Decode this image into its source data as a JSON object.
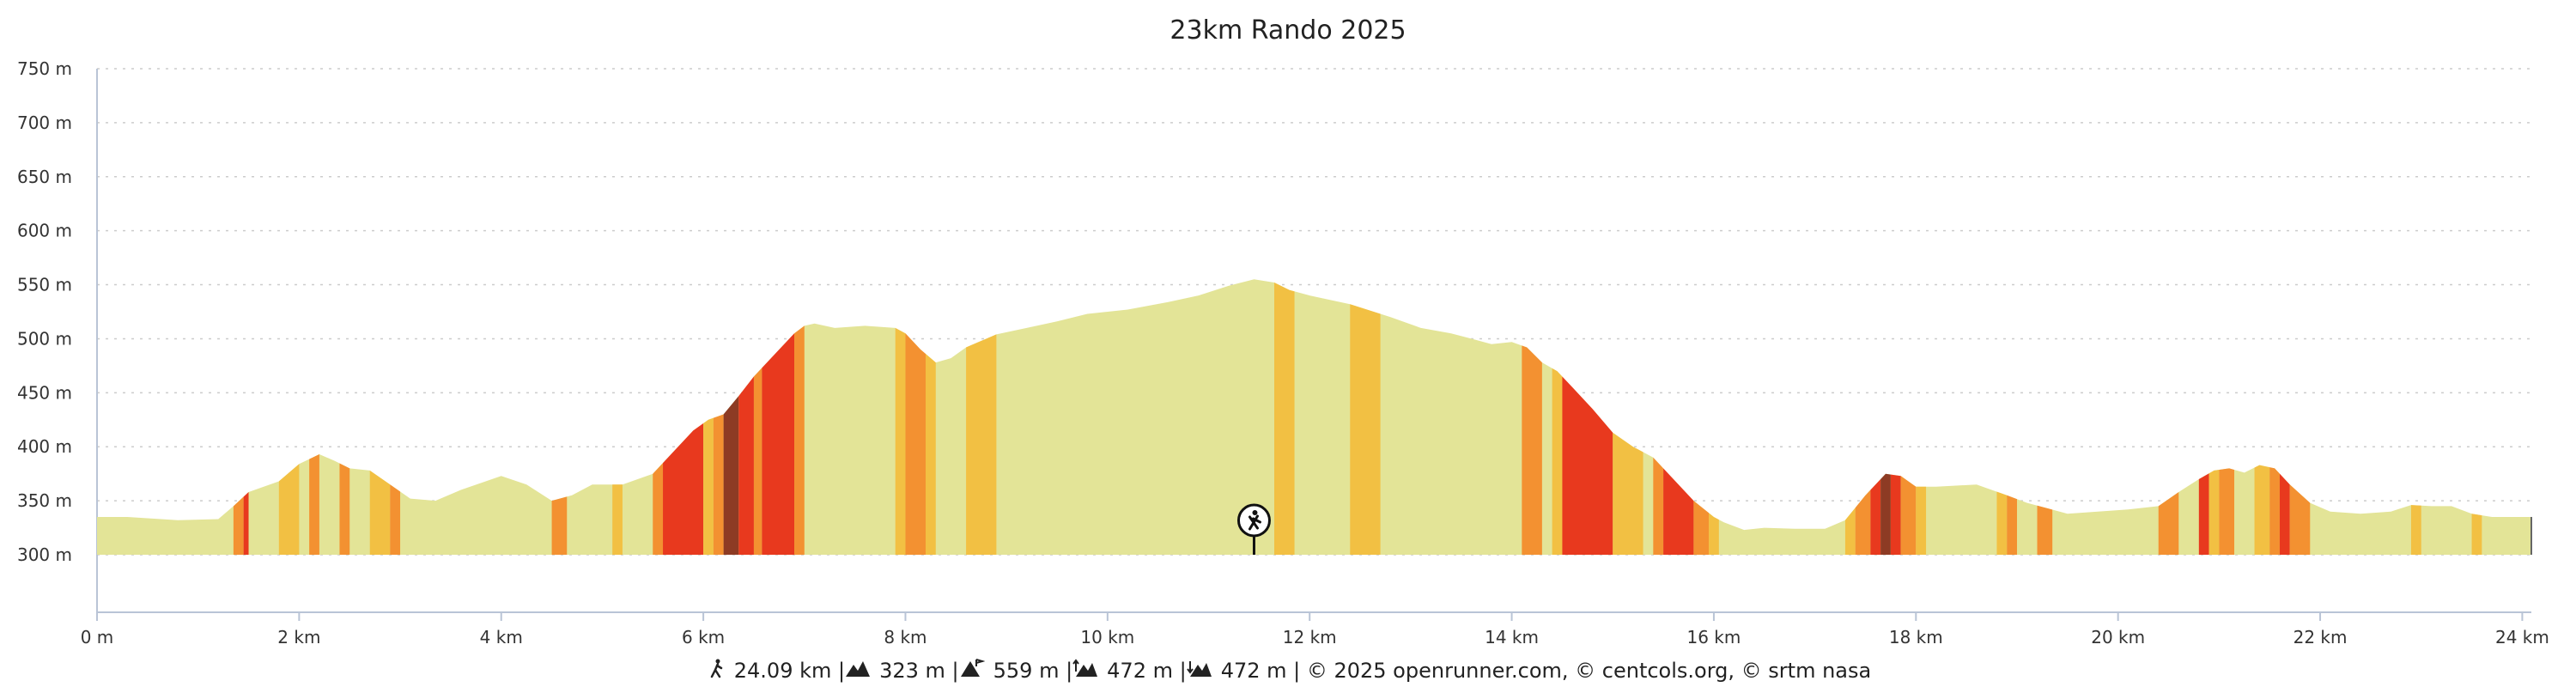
{
  "chart_data": {
    "type": "area",
    "title": "23km Rando 2025",
    "xlabel": "",
    "ylabel": "",
    "xlim": [
      0,
      24.09
    ],
    "ylim": [
      300,
      750
    ],
    "grid": true,
    "y_ticks": [
      300,
      350,
      400,
      450,
      500,
      550,
      600,
      650,
      700,
      750
    ],
    "y_tick_labels": [
      "300 m",
      "350 m",
      "400 m",
      "450 m",
      "500 m",
      "550 m",
      "600 m",
      "650 m",
      "700 m",
      "750 m"
    ],
    "x_ticks": [
      0,
      2,
      4,
      6,
      8,
      10,
      12,
      14,
      16,
      18,
      20,
      22,
      24
    ],
    "x_tick_labels": [
      "0 m",
      "2 km",
      "4 km",
      "6 km",
      "8 km",
      "10 km",
      "12 km",
      "14 km",
      "16 km",
      "18 km",
      "20 km",
      "22 km",
      "24 km"
    ],
    "series": [
      {
        "x": [
          0,
          0.3,
          0.8,
          1.2,
          1.35,
          1.5,
          1.8,
          2.0,
          2.2,
          2.35,
          2.5,
          2.7,
          2.9,
          3.1,
          3.35,
          3.6,
          4.0,
          4.25,
          4.5,
          4.7,
          4.9,
          5.2,
          5.5,
          5.7,
          5.9,
          6.05,
          6.2,
          6.35,
          6.5,
          6.6,
          6.75,
          6.9,
          7.0,
          7.1,
          7.3,
          7.6,
          7.9,
          8.0,
          8.15,
          8.3,
          8.45,
          8.6,
          8.9,
          9.2,
          9.5,
          9.8,
          10.2,
          10.6,
          10.9,
          11.2,
          11.45,
          11.65,
          11.8,
          12.0,
          12.4,
          12.8,
          13.1,
          13.4,
          13.6,
          13.8,
          14.0,
          14.15,
          14.3,
          14.45,
          14.6,
          14.8,
          15.0,
          15.2,
          15.4,
          15.6,
          15.8,
          16.0,
          16.1,
          16.3,
          16.5,
          16.8,
          17.1,
          17.3,
          17.5,
          17.7,
          17.85,
          18.0,
          18.2,
          18.6,
          18.9,
          19.1,
          19.3,
          19.5,
          19.8,
          20.1,
          20.4,
          20.6,
          20.8,
          20.95,
          21.1,
          21.25,
          21.4,
          21.55,
          21.7,
          21.9,
          22.1,
          22.4,
          22.7,
          22.9,
          23.1,
          23.3,
          23.5,
          23.7,
          23.9,
          24.09
        ],
        "y": [
          335,
          335,
          332,
          333,
          345,
          358,
          368,
          384,
          393,
          387,
          380,
          378,
          365,
          352,
          350,
          360,
          373,
          365,
          350,
          355,
          365,
          365,
          375,
          395,
          415,
          425,
          430,
          447,
          465,
          475,
          490,
          505,
          512,
          514,
          510,
          512,
          510,
          505,
          490,
          478,
          482,
          492,
          504,
          510,
          516,
          523,
          527,
          534,
          540,
          549,
          555,
          552,
          545,
          540,
          532,
          520,
          510,
          505,
          500,
          495,
          497,
          492,
          478,
          470,
          455,
          435,
          413,
          400,
          390,
          370,
          350,
          335,
          330,
          323,
          325,
          324,
          324,
          332,
          355,
          375,
          373,
          363,
          363,
          365,
          355,
          348,
          343,
          338,
          340,
          342,
          345,
          358,
          370,
          378,
          380,
          376,
          383,
          380,
          365,
          348,
          340,
          338,
          340,
          346,
          345,
          345,
          338,
          335,
          335,
          335
        ]
      }
    ],
    "slope_bands": [
      [
        1.35,
        1.45,
        "#f39131"
      ],
      [
        1.45,
        1.5,
        "#e8391e"
      ],
      [
        1.8,
        2.0,
        "#f2c043"
      ],
      [
        2.1,
        2.2,
        "#f39131"
      ],
      [
        2.4,
        2.5,
        "#f39131"
      ],
      [
        2.7,
        2.9,
        "#f2c043"
      ],
      [
        2.9,
        3.0,
        "#f39131"
      ],
      [
        4.5,
        4.65,
        "#f39131"
      ],
      [
        5.1,
        5.2,
        "#f2c043"
      ],
      [
        5.5,
        5.6,
        "#f39131"
      ],
      [
        5.6,
        6.0,
        "#e8391e"
      ],
      [
        6.0,
        6.1,
        "#f2c043"
      ],
      [
        6.1,
        6.2,
        "#f39131"
      ],
      [
        6.2,
        6.35,
        "#8d3b24"
      ],
      [
        6.35,
        6.5,
        "#e8391e"
      ],
      [
        6.5,
        6.58,
        "#f39131"
      ],
      [
        6.58,
        6.9,
        "#e8391e"
      ],
      [
        6.9,
        7.0,
        "#f39131"
      ],
      [
        7.9,
        8.0,
        "#f2c043"
      ],
      [
        8.0,
        8.2,
        "#f39131"
      ],
      [
        8.2,
        8.3,
        "#f2c043"
      ],
      [
        8.6,
        8.9,
        "#f2c043"
      ],
      [
        11.65,
        11.85,
        "#f2c043"
      ],
      [
        12.4,
        12.7,
        "#f2c043"
      ],
      [
        14.1,
        14.3,
        "#f39131"
      ],
      [
        14.4,
        14.5,
        "#f2c043"
      ],
      [
        14.5,
        15.0,
        "#e8391e"
      ],
      [
        15.0,
        15.3,
        "#f2c043"
      ],
      [
        15.4,
        15.5,
        "#f39131"
      ],
      [
        15.5,
        15.8,
        "#e8391e"
      ],
      [
        15.8,
        15.95,
        "#f39131"
      ],
      [
        15.95,
        16.05,
        "#f2c043"
      ],
      [
        17.3,
        17.4,
        "#f2c043"
      ],
      [
        17.4,
        17.55,
        "#f39131"
      ],
      [
        17.55,
        17.65,
        "#e8391e"
      ],
      [
        17.65,
        17.75,
        "#8d3b24"
      ],
      [
        17.75,
        17.85,
        "#e8391e"
      ],
      [
        17.85,
        18.0,
        "#f39131"
      ],
      [
        18.0,
        18.1,
        "#f2c043"
      ],
      [
        18.8,
        18.9,
        "#f2c043"
      ],
      [
        18.9,
        19.0,
        "#f39131"
      ],
      [
        19.2,
        19.35,
        "#f39131"
      ],
      [
        20.4,
        20.6,
        "#f39131"
      ],
      [
        20.8,
        20.9,
        "#e8391e"
      ],
      [
        20.9,
        21.0,
        "#f2c043"
      ],
      [
        21.0,
        21.15,
        "#f39131"
      ],
      [
        21.35,
        21.5,
        "#f2c043"
      ],
      [
        21.5,
        21.6,
        "#f39131"
      ],
      [
        21.6,
        21.7,
        "#e8391e"
      ],
      [
        21.7,
        21.9,
        "#f39131"
      ],
      [
        22.9,
        23.0,
        "#f2c043"
      ],
      [
        23.5,
        23.6,
        "#f2c043"
      ]
    ],
    "marker": {
      "x": 11.45,
      "icon": "no-entry-hiker-icon"
    }
  },
  "colors": {
    "base_fill": "#e3e497",
    "grid": "#cccccc",
    "axis": "#b9c4d6"
  },
  "footer": {
    "stats": [
      {
        "icon": "distance-icon",
        "text": "24.09 km |"
      },
      {
        "icon": "elevation-gain-icon",
        "text": "323 m |"
      },
      {
        "icon": "max-altitude-icon",
        "text": "559 m |"
      },
      {
        "icon": "ascent-icon",
        "text": "472 m |"
      },
      {
        "icon": "descent-icon",
        "text": "472 m | © 2025 openrunner.com, © centcols.org, © srtm nasa"
      }
    ]
  }
}
